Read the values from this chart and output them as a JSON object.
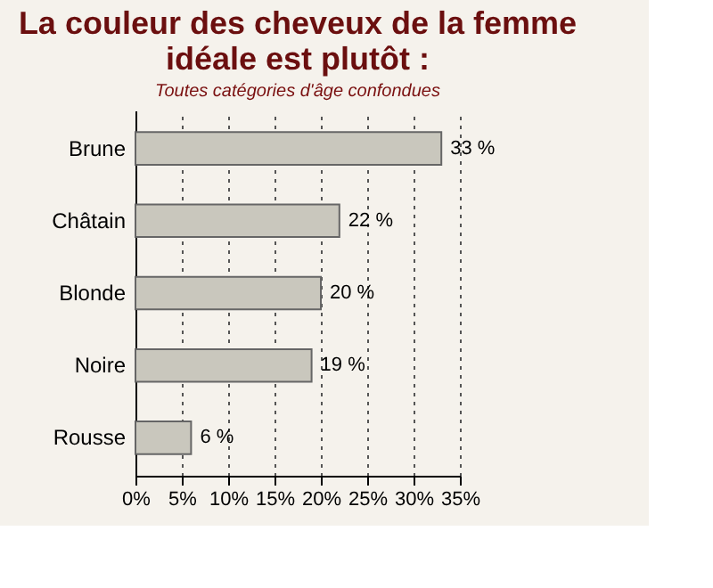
{
  "chart_data": {
    "type": "bar",
    "orientation": "horizontal",
    "title": "La couleur des cheveux de la femme idéale est plutôt :",
    "subtitle": "Toutes catégories d'âge confondues",
    "categories": [
      "Brune",
      "Châtain",
      "Blonde",
      "Noire",
      "Rousse"
    ],
    "values": [
      33,
      22,
      20,
      19,
      6
    ],
    "value_labels": [
      "33 %",
      "22 %",
      "20 %",
      "19 %",
      "6 %"
    ],
    "color": "#c9c7bd",
    "xlim": [
      0,
      35
    ],
    "xticks": [
      {
        "value": 0,
        "label": "0%"
      },
      {
        "value": 5,
        "label": "5%"
      },
      {
        "value": 10,
        "label": "10%"
      },
      {
        "value": 15,
        "label": "15%"
      },
      {
        "value": 20,
        "label": "20%"
      },
      {
        "value": 25,
        "label": "25%"
      },
      {
        "value": 30,
        "label": "30%"
      },
      {
        "value": 35,
        "label": "35%"
      }
    ],
    "grid": "x"
  }
}
